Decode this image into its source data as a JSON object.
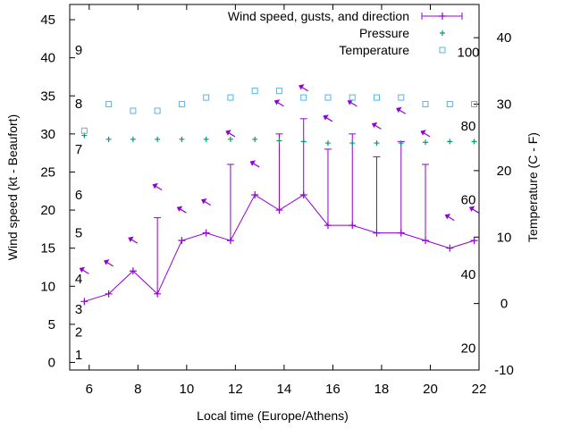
{
  "chart_data": {
    "type": "line",
    "xlabel": "Local time (Europe/Athens)",
    "ylabel": "Wind speed (kt - Beaufort)",
    "y2label": "Temperature (C - F)",
    "xlim": [
      5.2,
      22
    ],
    "ylim": [
      -1,
      47
    ],
    "y2lim": [
      -10,
      45
    ],
    "x_ticks": [
      6,
      8,
      10,
      12,
      14,
      16,
      18,
      20,
      22
    ],
    "y_ticks": [
      0,
      5,
      10,
      15,
      20,
      25,
      30,
      35,
      40,
      45
    ],
    "y2_ticks": [
      -10,
      0,
      10,
      20,
      30,
      40
    ],
    "beaufort_labels": [
      {
        "label": "1",
        "y": 1
      },
      {
        "label": "2",
        "y": 4
      },
      {
        "label": "3",
        "y": 7
      },
      {
        "label": "4",
        "y": 11
      },
      {
        "label": "5",
        "y": 17
      },
      {
        "label": "6",
        "y": 22
      },
      {
        "label": "7",
        "y": 28
      },
      {
        "label": "8",
        "y": 34
      },
      {
        "label": "9",
        "y": 41
      }
    ],
    "fahrenheit_labels": [
      {
        "label": "20",
        "t": -6.7
      },
      {
        "label": "40",
        "t": 4.4
      },
      {
        "label": "60",
        "t": 15.6
      },
      {
        "label": "80",
        "t": 26.7
      },
      {
        "label": "100",
        "t": 37.8
      }
    ],
    "legend": {
      "position": "top-right",
      "entries": [
        "Wind speed, gusts, and direction",
        "Pressure",
        "Temperature"
      ]
    },
    "colors": {
      "wind": "#9400d3",
      "pressure": "#009e73",
      "temperature": "#56b4e9"
    },
    "series": [
      {
        "name": "Wind speed, gusts, and direction",
        "x": [
          5.8,
          6.8,
          7.8,
          8.8,
          9.8,
          10.8,
          11.8,
          12.8,
          13.8,
          14.8,
          15.8,
          16.8,
          17.8,
          18.8,
          19.8,
          20.8,
          21.8
        ],
        "values": [
          8,
          9,
          12,
          9,
          16,
          17,
          16,
          22,
          20,
          22,
          18,
          18,
          17,
          17,
          16,
          15,
          16
        ],
        "gusts": [
          8,
          9,
          12,
          19,
          16,
          17,
          26,
          22,
          30,
          32,
          28,
          30,
          27,
          29,
          26,
          15,
          16
        ],
        "direction_arrows_y": [
          12,
          13,
          16,
          23,
          20,
          21,
          30,
          26,
          34,
          36,
          32,
          34,
          31,
          33,
          30,
          19,
          20
        ]
      },
      {
        "name": "Pressure",
        "x": [
          5.8,
          6.8,
          7.8,
          8.8,
          9.8,
          10.8,
          11.8,
          12.8,
          13.8,
          14.8,
          15.8,
          16.8,
          17.8,
          18.8,
          19.8,
          20.8,
          21.8
        ],
        "values": [
          29.8,
          29.3,
          29.3,
          29.3,
          29.3,
          29.3,
          29.3,
          29.3,
          29.1,
          29.0,
          28.8,
          28.8,
          28.8,
          28.8,
          28.9,
          29.0,
          29.0
        ]
      },
      {
        "name": "Temperature",
        "x": [
          5.8,
          6.8,
          7.8,
          8.8,
          9.8,
          10.8,
          11.8,
          12.8,
          13.8,
          14.8,
          15.8,
          16.8,
          17.8,
          18.8,
          19.8,
          20.8,
          21.8
        ],
        "values": [
          26,
          30,
          29,
          29,
          30,
          31,
          31,
          32,
          32,
          31,
          31,
          31,
          31,
          31,
          30,
          30,
          30
        ]
      }
    ]
  }
}
